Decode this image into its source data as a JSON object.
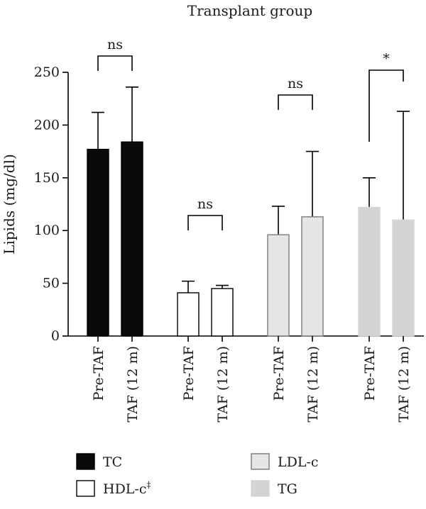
{
  "chart_data": {
    "type": "bar",
    "title": "Transplant group",
    "ylabel": "Lipids (mg/dl)",
    "xlabel": "",
    "ylim": [
      0,
      250
    ],
    "yticks": [
      0,
      50,
      100,
      150,
      200,
      250
    ],
    "grid": false,
    "legend_position": "bottom",
    "categories": [
      "Pre-TAF",
      "TAF (12 m)",
      "Pre-TAF",
      "TAF (12 m)",
      "Pre-TAF",
      "TAF (12 m)",
      "Pre-TAF",
      "TAF (12 m)"
    ],
    "groups": [
      {
        "series": "TC",
        "bars": [
          {
            "category": "Pre-TAF",
            "value": 177,
            "error_upper": 212
          },
          {
            "category": "TAF (12 m)",
            "value": 184,
            "error_upper": 236
          }
        ],
        "significance": "ns"
      },
      {
        "series": "HDL-c‡",
        "bars": [
          {
            "category": "Pre-TAF",
            "value": 41,
            "error_upper": 52
          },
          {
            "category": "TAF (12 m)",
            "value": 45,
            "error_upper": 48
          }
        ],
        "significance": "ns"
      },
      {
        "series": "LDL-c",
        "bars": [
          {
            "category": "Pre-TAF",
            "value": 96,
            "error_upper": 123
          },
          {
            "category": "TAF (12 m)",
            "value": 113,
            "error_upper": 175
          }
        ],
        "significance": "ns"
      },
      {
        "series": "TG",
        "bars": [
          {
            "category": "Pre-TAF",
            "value": 122,
            "error_upper": 150
          },
          {
            "category": "TAF (12 m)",
            "value": 110,
            "error_upper": 213
          }
        ],
        "significance": "*"
      }
    ],
    "legend": [
      {
        "label": "TC",
        "fill": "#0a0a0a",
        "stroke": "#000000"
      },
      {
        "label": "HDL-c",
        "superscript": "‡",
        "fill": "#ffffff",
        "stroke": "#000000"
      },
      {
        "label": "LDL-c",
        "fill": "#e6e6e6",
        "stroke": "#7a7a7a"
      },
      {
        "label": "TG",
        "fill": "#d4d4d4",
        "stroke": "#d4d4d4"
      }
    ]
  }
}
